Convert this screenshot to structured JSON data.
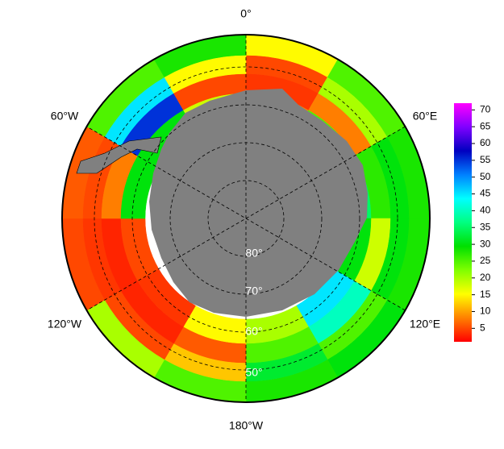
{
  "map": {
    "longitude_labels": [
      "0°",
      "60°E",
      "120°E",
      "180°W",
      "120°W",
      "60°W"
    ],
    "latitude_labels": [
      "80°",
      "70°",
      "60°",
      "50°"
    ],
    "colormap": [
      "#ff0000",
      "#ff8000",
      "#ffff00",
      "#80ff00",
      "#00e000",
      "#00ff80",
      "#00ffff",
      "#0080ff",
      "#0000c0",
      "#8000ff",
      "#ff00ff"
    ],
    "clim": [
      1,
      72
    ],
    "colorbar_ticks": [
      5,
      10,
      15,
      20,
      25,
      30,
      35,
      40,
      45,
      50,
      55,
      60,
      65,
      70
    ],
    "field": [
      [
        15,
        5,
        4,
        8
      ],
      [
        25,
        20,
        8,
        25
      ],
      [
        28,
        30,
        27,
        35
      ],
      [
        28,
        30,
        18,
        30
      ],
      [
        30,
        25,
        40,
        45
      ],
      [
        28,
        32,
        25,
        20
      ],
      [
        25,
        12,
        6,
        15
      ],
      [
        20,
        5,
        3,
        4
      ],
      [
        5,
        4,
        3,
        5
      ],
      [
        6,
        5,
        8,
        30
      ],
      [
        25,
        45,
        55,
        30
      ],
      [
        28,
        15,
        5,
        18
      ]
    ]
  }
}
